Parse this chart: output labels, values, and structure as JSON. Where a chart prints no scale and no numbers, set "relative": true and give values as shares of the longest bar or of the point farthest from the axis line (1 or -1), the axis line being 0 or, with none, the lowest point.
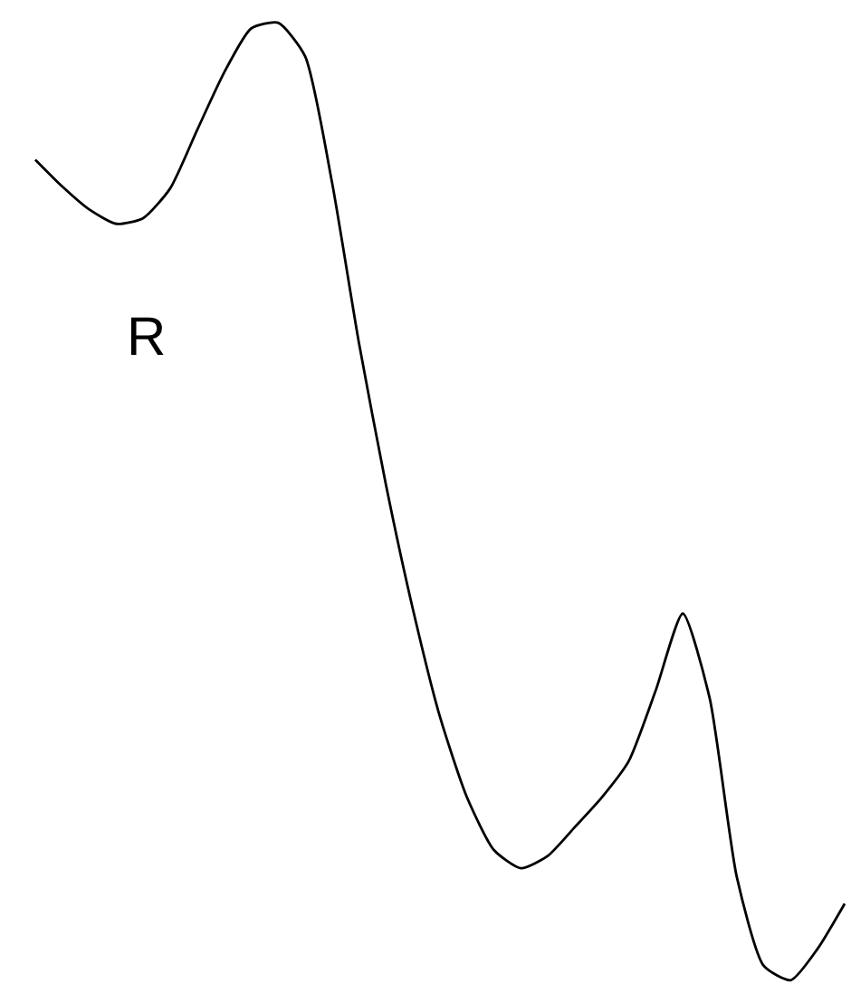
{
  "chart_data": {
    "type": "line",
    "relative": true,
    "categories": [
      null,
      null,
      null,
      null,
      null,
      null,
      null,
      null,
      null,
      null,
      null,
      null,
      null,
      null,
      null,
      null,
      null,
      null,
      null,
      null,
      null,
      null,
      null,
      null,
      null,
      null,
      null,
      null,
      null,
      null,
      null
    ],
    "series": [
      {
        "color": "#000000",
        "values": [
          0.857,
          0.829,
          0.805,
          0.79,
          0.796,
          0.827,
          0.888,
          0.948,
          0.994,
          1.0,
          0.965,
          0.833,
          0.665,
          0.517,
          0.387,
          0.275,
          0.191,
          0.136,
          0.117,
          0.13,
          0.16,
          0.191,
          0.229,
          0.303,
          0.383,
          0.294,
          0.108,
          0.015,
          0.0,
          0.033,
          0.08
        ]
      }
    ],
    "annotations": [
      "R"
    ],
    "legend": false,
    "marker": "none",
    "line_style": "solid"
  }
}
